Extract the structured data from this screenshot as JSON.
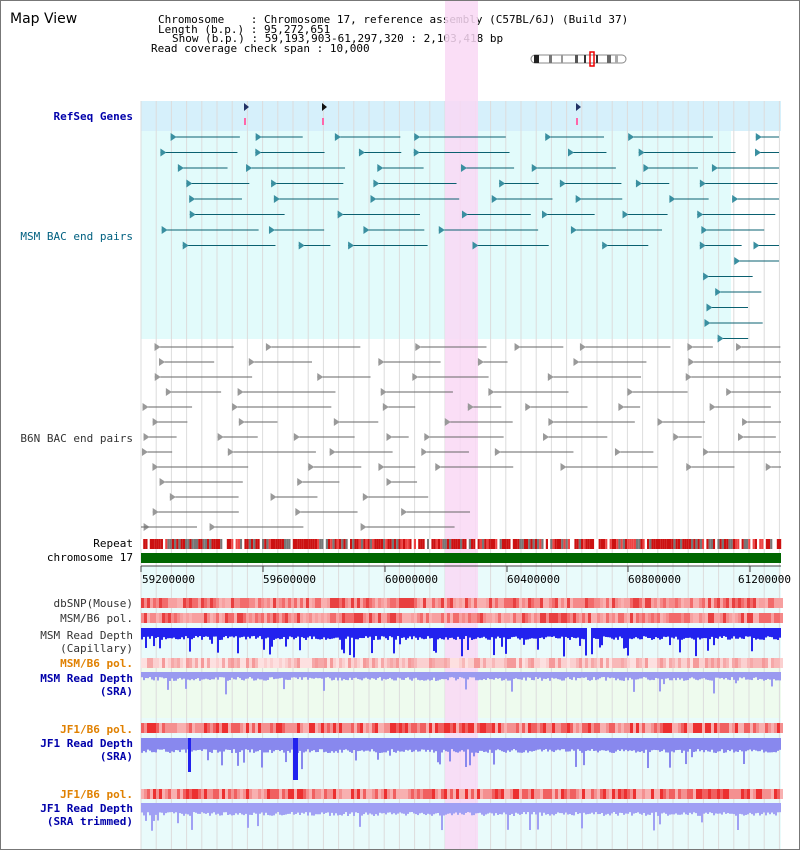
{
  "app": {
    "title": "Map View"
  },
  "header": {
    "chromosome_label": "Chromosome",
    "chromosome_value": "Chromosome 17, reference assembly (C57BL/6J) (Build 37)",
    "length_label": "Length (b.p.)",
    "length_value": "95,272,651",
    "show_label": "Show (b.p.)",
    "show_value": "59,193,903-61,297,320 : 2,103,418 bp",
    "coverage_label": "Read coverage check span",
    "coverage_value": "10,000"
  },
  "tracks": {
    "refseq": "RefSeq Genes",
    "msm_bac": "MSM BAC end pairs",
    "b6n_bac": "B6N BAC end pairs",
    "repeat": "Repeat",
    "chromosome": "chromosome 17",
    "dbsnp": "dbSNP(Mouse)",
    "msm_b6_pol": "MSM/B6 pol.",
    "msm_depth_cap_1": "MSM Read Depth",
    "msm_depth_cap_2": "(Capillary)",
    "msm_b6_pol2": "MSM/B6 pol.",
    "msm_depth_sra_1": "MSM Read Depth",
    "msm_depth_sra_2": "(SRA)",
    "jf1_b6_pol": "JF1/B6 pol.",
    "jf1_depth_1": "JF1 Read Depth",
    "jf1_depth_2": "(SRA)",
    "jf1_b6_pol2": "JF1/B6 pol.",
    "jf1_trim_1": "JF1 Read Depth",
    "jf1_trim_2": "(SRA trimmed)"
  },
  "ruler": {
    "ticks": [
      "59200000",
      "59600000",
      "60000000",
      "60400000",
      "60800000",
      "61200000"
    ]
  },
  "colors": {
    "highlight": "#f9d8f5",
    "refseq_bg": "#d6f0fb",
    "msm_bg": "#e2fbfb",
    "chrom_bar": "#006600",
    "depth_blue": "#2222ee",
    "depth_light": "#8888ee"
  }
}
